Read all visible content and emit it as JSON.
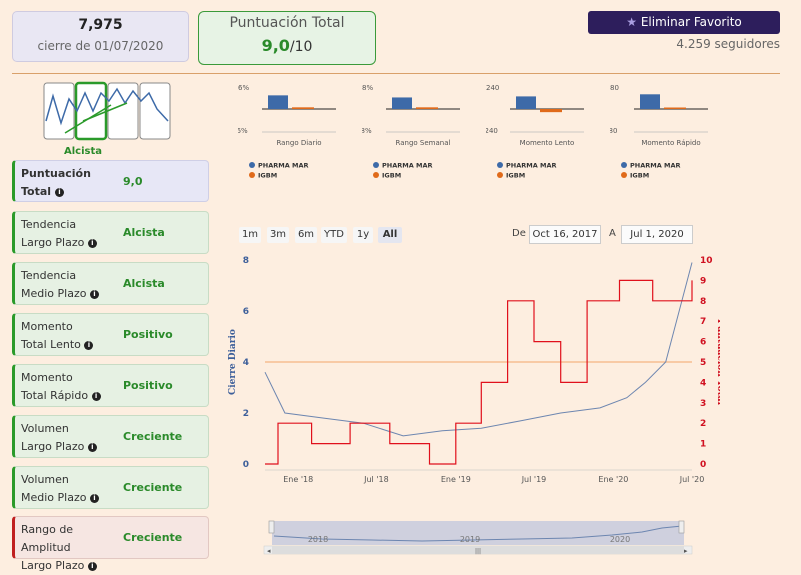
{
  "header": {
    "price": "7,975",
    "price_date": "cierre de 01/07/2020",
    "score_title": "Puntuación Total",
    "score_value": "9,0",
    "score_max": "/10",
    "fav_button": "Eliminar Favorito",
    "followers": "4.259 seguidores"
  },
  "trend_label": "Alcista",
  "cards": [
    {
      "l1": "Puntuación",
      "l2": "Total",
      "value": "9,0"
    },
    {
      "l1": "Tendencia",
      "l2": "Largo Plazo",
      "value": "Alcista"
    },
    {
      "l1": "Tendencia",
      "l2": "Medio Plazo",
      "value": "Alcista"
    },
    {
      "l1": "Momento",
      "l2": "Total Lento",
      "value": "Positivo"
    },
    {
      "l1": "Momento",
      "l2": "Total Rápido",
      "value": "Positivo"
    },
    {
      "l1": "Volumen",
      "l2": "Largo Plazo",
      "value": "Creciente"
    },
    {
      "l1": "Volumen",
      "l2": "Medio Plazo",
      "value": "Creciente"
    },
    {
      "l1": "Rango de Amplitud",
      "l2": "Largo Plazo",
      "value": "Creciente"
    }
  ],
  "mini_legend": {
    "series1": "PHARMA MAR",
    "series2": "IGBM"
  },
  "mini_charts": [
    {
      "title": "Rango Diario",
      "ymax": "6%",
      "ymin": "-6%",
      "v1": 0.65,
      "v2": 0.08
    },
    {
      "title": "Rango Semanal",
      "ymax": "8%",
      "ymin": "-8%",
      "v1": 0.55,
      "v2": 0.08
    },
    {
      "title": "Momento Lento",
      "ymax": "240",
      "ymin": "-240",
      "v1": 0.6,
      "v2": -0.15
    },
    {
      "title": "Momento Rápido",
      "ymax": "80",
      "ymin": "-80",
      "v1": 0.7,
      "v2": 0.05
    }
  ],
  "range_buttons": [
    "1m",
    "3m",
    "6m",
    "YTD",
    "1y",
    "All"
  ],
  "active_range": "All",
  "date_from_label": "De",
  "date_from": "Oct 16, 2017",
  "date_to_label": "A",
  "date_to": "Jul 1, 2020",
  "main_chart": {
    "left_axis_title": "Cierre Diario",
    "right_axis_title": "Puntuación Total",
    "left_ticks": [
      "0",
      "2",
      "4",
      "6",
      "8"
    ],
    "right_ticks": [
      "0",
      "1",
      "2",
      "3",
      "4",
      "5",
      "6",
      "7",
      "8",
      "9",
      "10"
    ],
    "x_ticks": [
      "Ene '18",
      "Jul '18",
      "Ene '19",
      "Jul '19",
      "Ene '20",
      "Jul '20"
    ],
    "navigator_labels": [
      "2018",
      "2019",
      "2020"
    ],
    "colors": {
      "price": "#6d86b0",
      "score": "#e0101c",
      "ref": "#f2a56a"
    }
  },
  "chart_data": {
    "type": "line",
    "series": [
      {
        "name": "Cierre Diario",
        "axis": "left",
        "x": [
          "2017-10-16",
          "2017-12-01",
          "2018-03-01",
          "2018-06-01",
          "2018-09-01",
          "2018-12-01",
          "2019-03-01",
          "2019-06-01",
          "2019-09-01",
          "2019-12-01",
          "2020-02-01",
          "2020-03-15",
          "2020-05-01",
          "2020-07-01"
        ],
        "y": [
          3.6,
          2.0,
          1.8,
          1.6,
          1.1,
          1.3,
          1.4,
          1.7,
          2.0,
          2.2,
          2.6,
          3.2,
          4.0,
          7.9
        ]
      },
      {
        "name": "Puntuación Total",
        "axis": "right",
        "x": [
          "2017-10-16",
          "2017-11-15",
          "2018-02-01",
          "2018-05-01",
          "2018-08-01",
          "2018-11-01",
          "2019-01-01",
          "2019-03-01",
          "2019-05-01",
          "2019-07-01",
          "2019-09-01",
          "2019-11-01",
          "2020-01-15",
          "2020-04-01",
          "2020-07-01"
        ],
        "y": [
          0,
          2,
          1,
          2,
          1,
          0,
          2,
          4,
          8,
          6,
          4,
          8,
          9,
          8,
          9
        ]
      }
    ],
    "ylim_left": [
      0,
      8
    ],
    "ylim_right": [
      0,
      10
    ],
    "reference_line": {
      "axis": "right",
      "value": 5
    }
  }
}
